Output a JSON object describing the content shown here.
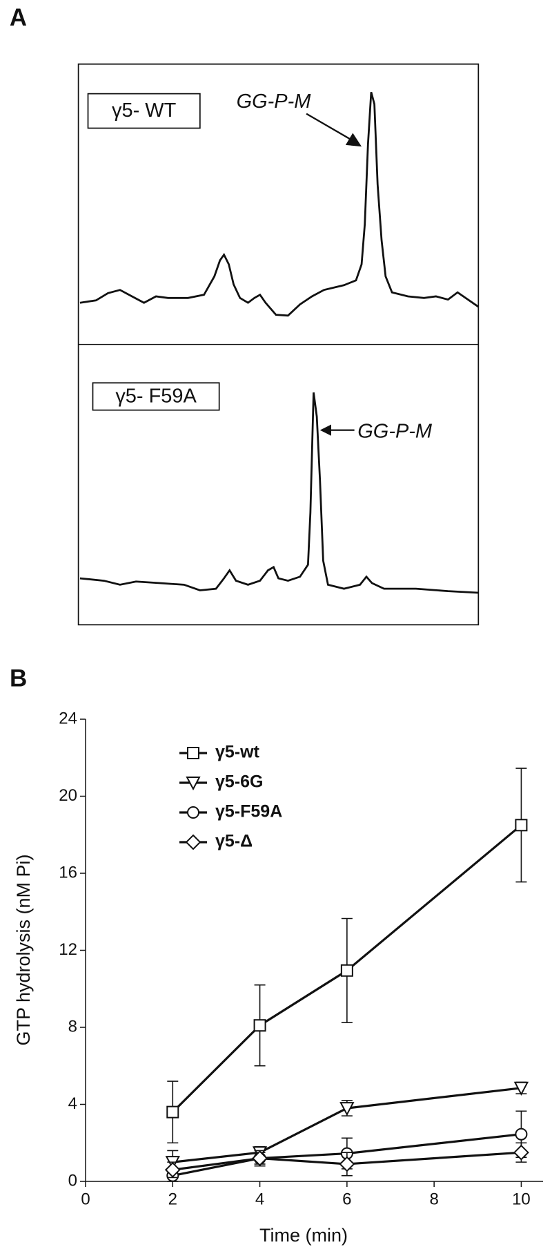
{
  "panel_a": {
    "label": "A",
    "top_box": "γ5- WT",
    "top_peak": "GG-P-M",
    "bottom_box": "γ5- F59A",
    "bottom_peak": "GG-P-M"
  },
  "chart_data": {
    "type": "line",
    "panel_label": "B",
    "x_label": "Time (min)",
    "y_label": "GTP hydrolysis (nM Pi)",
    "x": [
      2,
      4,
      6,
      10
    ],
    "series": [
      {
        "name": "γ5-wt",
        "color": "#111111",
        "marker": "square",
        "values": [
          3.6,
          8.1,
          10.95,
          18.5
        ],
        "errors": [
          1.6,
          2.1,
          2.7,
          2.95
        ]
      },
      {
        "name": "γ5-6G",
        "color": "#111111",
        "marker": "triangle-down",
        "values": [
          1.0,
          1.5,
          3.8,
          4.85
        ],
        "errors": [
          0.6,
          0.3,
          0.4,
          0.3
        ]
      },
      {
        "name": "γ5-F59A",
        "color": "#111111",
        "marker": "circle",
        "values": [
          0.3,
          1.2,
          1.45,
          2.45
        ],
        "errors": [
          0.3,
          0.3,
          0.8,
          1.2
        ]
      },
      {
        "name": "γ5-Δ",
        "color": "#111111",
        "marker": "diamond",
        "values": [
          0.6,
          1.2,
          0.9,
          1.5
        ],
        "errors": [
          0.4,
          0.4,
          0.6,
          0.5
        ]
      }
    ],
    "xlim": [
      0,
      10.5
    ],
    "ylim": [
      0,
      24
    ],
    "xticks": [
      0,
      2,
      4,
      6,
      8,
      10
    ],
    "yticks": [
      0,
      4,
      8,
      12,
      16,
      20,
      24
    ],
    "legend": "upper-left"
  }
}
